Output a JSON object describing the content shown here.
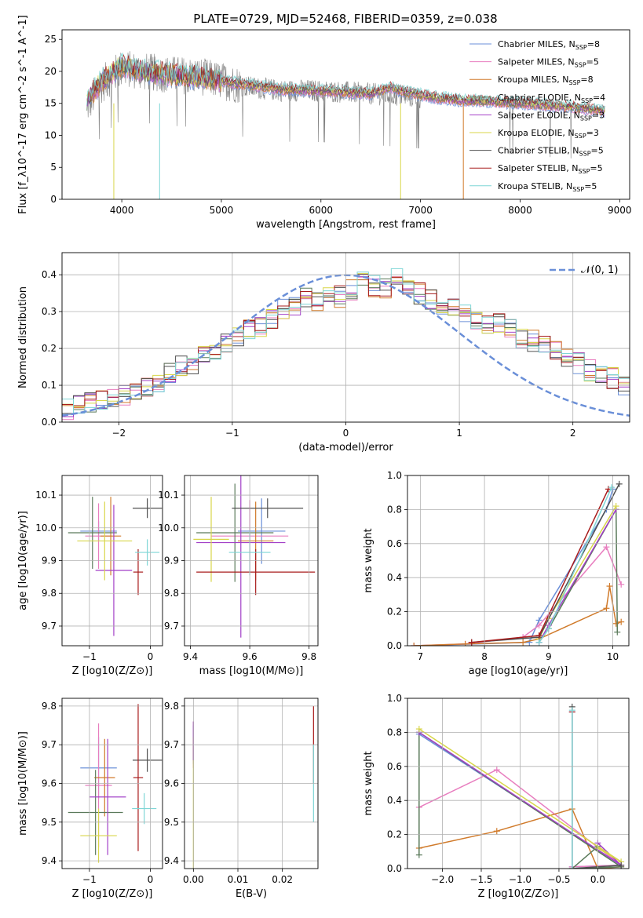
{
  "figure": {
    "title": "PLATE=0729, MJD=52468, FIBERID=0359, z=0.038"
  },
  "colors": {
    "Chabrier MILES": "#6a8fd8",
    "Salpeter MILES": "#e87ebf",
    "Kroupa MILES": "#d07a2a",
    "Chabrier ELODIE": "#5a7a5a",
    "Salpeter ELODIE": "#a23fc7",
    "Kroupa ELODIE": "#d8d64a",
    "Chabrier STELIB": "#505050",
    "Salpeter STELIB": "#a81c1c",
    "Kroupa STELIB": "#7fd6d6"
  },
  "chart_data": [
    {
      "id": "spectrum",
      "type": "line",
      "xlabel": "wavelength [Angstrom, rest frame]",
      "ylabel": "Flux [f_λ10^-17 erg cm^-2 s^-1 A^-1]",
      "xlim": [
        3400,
        9100
      ],
      "ylim": [
        0,
        26.5
      ],
      "xticks": [
        4000,
        5000,
        6000,
        7000,
        8000,
        9000
      ],
      "yticks": [
        0,
        5,
        10,
        15,
        20,
        25
      ],
      "legend": "top-right",
      "legend_entries": [
        {
          "imf": "Chabrier MILES",
          "nssp": "8"
        },
        {
          "imf": "Salpeter MILES",
          "nssp": "5"
        },
        {
          "imf": "Kroupa MILES",
          "nssp": "8"
        },
        {
          "imf": "Chabrier ELODIE",
          "nssp": "4"
        },
        {
          "imf": "Salpeter ELODIE",
          "nssp": "3"
        },
        {
          "imf": "Kroupa ELODIE",
          "nssp": "3"
        },
        {
          "imf": "Chabrier STELIB",
          "nssp": "5"
        },
        {
          "imf": "Salpeter STELIB",
          "nssp": "5"
        },
        {
          "imf": "Kroupa STELIB",
          "nssp": "5"
        }
      ],
      "observed_envelope": {
        "x": [
          3650,
          3800,
          4000,
          4200,
          4500,
          4800,
          5000,
          5300,
          5600,
          5900,
          6200,
          6500,
          6800,
          7100,
          7400,
          7700,
          8000,
          8300,
          8600,
          8850
        ],
        "y": [
          14.5,
          18.0,
          20.5,
          20.0,
          19.5,
          19.2,
          18.5,
          17.5,
          17.0,
          17.0,
          16.8,
          16.5,
          16.2,
          15.8,
          15.5,
          15.2,
          15.0,
          14.6,
          14.3,
          13.8
        ]
      },
      "model_envelope": {
        "x": [
          3650,
          3800,
          4000,
          4200,
          4500,
          4800,
          5000,
          5300,
          5600,
          5900,
          6200,
          6500,
          6700,
          6800,
          7100,
          7400,
          7700,
          8000,
          8300,
          8600,
          8850
        ],
        "y": [
          15.5,
          18.5,
          21.0,
          20.0,
          19.5,
          19.0,
          18.5,
          17.8,
          17.2,
          17.0,
          16.8,
          16.5,
          17.5,
          17.0,
          16.0,
          15.5,
          15.3,
          15.0,
          14.7,
          14.3,
          13.8
        ]
      }
    },
    {
      "id": "residuals",
      "type": "line",
      "xlabel": "(data-model)/error",
      "ylabel": "Normed distribution",
      "xlim": [
        -2.5,
        2.5
      ],
      "ylim": [
        0,
        0.46
      ],
      "xticks": [
        -2,
        -1,
        0,
        1,
        2
      ],
      "yticks": [
        0.0,
        0.1,
        0.2,
        0.3,
        0.4
      ],
      "legend": "top-right",
      "gaussian_label": "𝒩(0, 1)",
      "bin_width": 0.1,
      "histogram_base": [
        0.035,
        0.045,
        0.05,
        0.06,
        0.07,
        0.075,
        0.08,
        0.09,
        0.11,
        0.13,
        0.15,
        0.16,
        0.18,
        0.19,
        0.21,
        0.23,
        0.25,
        0.26,
        0.28,
        0.31,
        0.32,
        0.34,
        0.33,
        0.35,
        0.34,
        0.36,
        0.38,
        0.37,
        0.36,
        0.39,
        0.37,
        0.35,
        0.33,
        0.32,
        0.31,
        0.3,
        0.28,
        0.27,
        0.27,
        0.25,
        0.23,
        0.22,
        0.21,
        0.19,
        0.18,
        0.16,
        0.14,
        0.13,
        0.12,
        0.1
      ]
    },
    {
      "id": "age-vs-Z",
      "type": "scatter",
      "xlabel": "Z [log10(Z/Z⊙)]",
      "ylabel": "age [log10(age/yr)]",
      "xlim": [
        -1.45,
        0.2
      ],
      "ylim": [
        9.64,
        10.16
      ],
      "xticks": [
        -1,
        0
      ],
      "yticks": [
        9.7,
        9.8,
        9.9,
        10.0,
        10.1
      ],
      "errorbars": [
        {
          "model": "Chabrier MILES",
          "x": -0.85,
          "xerr": 0.3,
          "y": 9.99,
          "yerr": 0.03
        },
        {
          "model": "Salpeter MILES",
          "x": -0.85,
          "xerr": 0.22,
          "y": 9.975,
          "yerr": 0.1
        },
        {
          "model": "Kroupa MILES",
          "x": -0.65,
          "xerr": 0.17,
          "y": 9.975,
          "yerr": 0.12
        },
        {
          "model": "Chabrier ELODIE",
          "x": -0.95,
          "xerr": 0.4,
          "y": 9.985,
          "yerr": 0.11
        },
        {
          "model": "Salpeter ELODIE",
          "x": -0.6,
          "xerr": 0.3,
          "y": 9.87,
          "yerr": 0.2
        },
        {
          "model": "Kroupa ELODIE",
          "x": -0.75,
          "xerr": 0.45,
          "y": 9.96,
          "yerr": 0.12
        },
        {
          "model": "Chabrier STELIB",
          "x": -0.05,
          "xerr": 0.24,
          "y": 10.06,
          "yerr": 0.03
        },
        {
          "model": "Salpeter STELIB",
          "x": -0.2,
          "xerr": 0.08,
          "y": 9.865,
          "yerr": 0.07
        },
        {
          "model": "Kroupa STELIB",
          "x": -0.05,
          "xerr": 0.2,
          "y": 9.925,
          "yerr": 0.04
        }
      ]
    },
    {
      "id": "age-vs-mass",
      "type": "scatter",
      "xlabel": "mass [log10(M/M⊙)]",
      "ylabel": "",
      "xlim": [
        9.38,
        9.83
      ],
      "ylim": [
        9.64,
        10.16
      ],
      "xticks": [
        9.4,
        9.6,
        9.8
      ],
      "yticks": [
        9.7,
        9.8,
        9.9,
        10.0,
        10.1
      ],
      "errorbars": [
        {
          "model": "Chabrier MILES",
          "x": 9.64,
          "xerr": 0.08,
          "y": 9.99,
          "yerr": 0.1
        },
        {
          "model": "Salpeter MILES",
          "x": 9.6,
          "xerr": 0.13,
          "y": 9.975,
          "yerr": 0.11
        },
        {
          "model": "Kroupa MILES",
          "x": 9.62,
          "xerr": 0.06,
          "y": 9.96,
          "yerr": 0.12
        },
        {
          "model": "Chabrier ELODIE",
          "x": 9.55,
          "xerr": 0.13,
          "y": 9.985,
          "yerr": 0.15
        },
        {
          "model": "Salpeter ELODIE",
          "x": 9.57,
          "xerr": 0.15,
          "y": 9.955,
          "yerr": 0.29
        },
        {
          "model": "Kroupa ELODIE",
          "x": 9.47,
          "xerr": 0.06,
          "y": 9.965,
          "yerr": 0.13
        },
        {
          "model": "Chabrier STELIB",
          "x": 9.66,
          "xerr": 0.12,
          "y": 10.06,
          "yerr": 0.03
        },
        {
          "model": "Salpeter STELIB",
          "x": 9.62,
          "xerr": 0.2,
          "y": 9.865,
          "yerr": 0.07
        },
        {
          "model": "Kroupa STELIB",
          "x": 9.6,
          "xerr": 0.07,
          "y": 9.925,
          "yerr": 0.07
        }
      ]
    },
    {
      "id": "weight-vs-age",
      "type": "line",
      "xlabel": "age [log10(age/yr)]",
      "ylabel": "mass weight",
      "xlim": [
        6.8,
        10.25
      ],
      "ylim": [
        0,
        1.0
      ],
      "xticks": [
        7,
        8,
        9,
        10
      ],
      "yticks": [
        0.0,
        0.2,
        0.4,
        0.6,
        0.8,
        1.0
      ],
      "series": [
        {
          "model": "Chabrier MILES",
          "x": [
            6.9,
            8.7,
            8.85,
            9.9,
            10.0
          ],
          "y": [
            0,
            0.02,
            0.15,
            0.8,
            0.92
          ]
        },
        {
          "model": "Salpeter MILES",
          "x": [
            6.9,
            7.7,
            8.6,
            8.85,
            9.9,
            10.13
          ],
          "y": [
            0,
            0.01,
            0.05,
            0.12,
            0.58,
            0.36
          ]
        },
        {
          "model": "Kroupa MILES",
          "x": [
            6.9,
            7.7,
            8.6,
            8.85,
            9.9,
            9.95,
            10.05,
            10.13
          ],
          "y": [
            0,
            0.01,
            0.02,
            0.04,
            0.22,
            0.35,
            0.13,
            0.14
          ]
        },
        {
          "model": "Chabrier ELODIE",
          "x": [
            8.85,
            9.0,
            10.05,
            10.07
          ],
          "y": [
            0.02,
            0.1,
            0.8,
            0.08
          ]
        },
        {
          "model": "Salpeter ELODIE",
          "x": [
            8.85,
            9.0,
            10.05
          ],
          "y": [
            0.02,
            0.12,
            0.8
          ]
        },
        {
          "model": "Kroupa ELODIE",
          "x": [
            8.85,
            9.0,
            10.05
          ],
          "y": [
            0.04,
            0.16,
            0.82
          ]
        },
        {
          "model": "Chabrier STELIB",
          "x": [
            7.8,
            8.85,
            10.1
          ],
          "y": [
            0.02,
            0.05,
            0.95
          ]
        },
        {
          "model": "Salpeter STELIB",
          "x": [
            7.8,
            8.85,
            9.93
          ],
          "y": [
            0.02,
            0.06,
            0.92
          ]
        },
        {
          "model": "Kroupa STELIB",
          "x": [
            8.85,
            9.0,
            9.98
          ],
          "y": [
            0.02,
            0.1,
            0.93
          ]
        }
      ]
    },
    {
      "id": "mass-vs-Z",
      "type": "scatter",
      "xlabel": "Z [log10(Z/Z⊙)]",
      "ylabel": "mass [log10(M/M⊙)]",
      "xlim": [
        -1.45,
        0.2
      ],
      "ylim": [
        9.38,
        9.82
      ],
      "xticks": [
        -1,
        0
      ],
      "yticks": [
        9.4,
        9.5,
        9.6,
        9.7,
        9.8
      ],
      "errorbars": [
        {
          "model": "Chabrier MILES",
          "x": -0.85,
          "xerr": 0.3,
          "y": 9.64,
          "yerr": 0.08
        },
        {
          "model": "Salpeter MILES",
          "x": -0.85,
          "xerr": 0.22,
          "y": 9.595,
          "yerr": 0.16
        },
        {
          "model": "Kroupa MILES",
          "x": -0.75,
          "xerr": 0.17,
          "y": 9.615,
          "yerr": 0.1
        },
        {
          "model": "Chabrier ELODIE",
          "x": -0.9,
          "xerr": 0.45,
          "y": 9.525,
          "yerr": 0.11
        },
        {
          "model": "Salpeter ELODIE",
          "x": -0.7,
          "xerr": 0.3,
          "y": 9.565,
          "yerr": 0.15
        },
        {
          "model": "Kroupa ELODIE",
          "x": -0.85,
          "xerr": 0.3,
          "y": 9.465,
          "yerr": 0.07
        },
        {
          "model": "Chabrier STELIB",
          "x": -0.05,
          "xerr": 0.24,
          "y": 9.66,
          "yerr": 0.03
        },
        {
          "model": "Salpeter STELIB",
          "x": -0.2,
          "xerr": 0.08,
          "y": 9.615,
          "yerr": 0.19
        },
        {
          "model": "Kroupa STELIB",
          "x": -0.1,
          "xerr": 0.2,
          "y": 9.535,
          "yerr": 0.04
        }
      ]
    },
    {
      "id": "mass-vs-EBV",
      "type": "scatter",
      "xlabel": "E(B-V)",
      "ylabel": "",
      "xlim": [
        -0.002,
        0.028
      ],
      "ylim": [
        9.38,
        9.82
      ],
      "xticks": [
        0.0,
        0.01,
        0.02
      ],
      "yticks": [
        9.4,
        9.5,
        9.6,
        9.7,
        9.8
      ],
      "errorbars": [
        {
          "model": "Chabrier MILES",
          "x": 0.0,
          "xerr": 0,
          "y": 9.7,
          "yerr": 0.05
        },
        {
          "model": "Salpeter MILES",
          "x": 0.0,
          "xerr": 0,
          "y": 9.7,
          "yerr": 0.06
        },
        {
          "model": "Kroupa ELODIE",
          "x": 0.0,
          "xerr": 0,
          "y": 9.55,
          "yerr": 0.17
        },
        {
          "model": "Salpeter ELODIE",
          "x": 0.0,
          "xerr": 0,
          "y": 9.71,
          "yerr": 0.05
        },
        {
          "model": "Salpeter STELIB",
          "x": 0.027,
          "xerr": 0,
          "y": 9.7,
          "yerr": 0.1
        },
        {
          "model": "Kroupa STELIB",
          "x": 0.027,
          "xerr": 0,
          "y": 9.6,
          "yerr": 0.1
        }
      ]
    },
    {
      "id": "weight-vs-Z",
      "type": "line",
      "xlabel": "Z [log10(Z/Z⊙)]",
      "ylabel": "mass weight",
      "xlim": [
        -2.45,
        0.4
      ],
      "ylim": [
        0,
        1.0
      ],
      "xticks": [
        -2.0,
        -1.5,
        -1.0,
        -0.5,
        0.0
      ],
      "yticks": [
        0.0,
        0.2,
        0.4,
        0.6,
        0.8,
        1.0
      ],
      "series": [
        {
          "model": "Chabrier MILES",
          "x": [
            -2.3,
            0.3,
            -0.33,
            -0.33
          ],
          "y": [
            0.79,
            0.02,
            0.01,
            0.92
          ]
        },
        {
          "model": "Salpeter MILES",
          "x": [
            -2.3,
            -1.3,
            0.3,
            -0.33
          ],
          "y": [
            0.36,
            0.58,
            0.02,
            0.01
          ]
        },
        {
          "model": "Kroupa MILES",
          "x": [
            -2.3,
            -1.3,
            -0.33,
            0.0,
            0.3
          ],
          "y": [
            0.12,
            0.22,
            0.35,
            0.0,
            0.01
          ]
        },
        {
          "model": "Chabrier ELODIE",
          "x": [
            -2.3,
            -2.3,
            0.3,
            -0.33,
            0.0
          ],
          "y": [
            0.08,
            0.8,
            0.01,
            0.0,
            0.13
          ]
        },
        {
          "model": "Salpeter ELODIE",
          "x": [
            -2.3,
            0.3,
            0.0
          ],
          "y": [
            0.8,
            0.02,
            0.15
          ]
        },
        {
          "model": "Kroupa ELODIE",
          "x": [
            -2.3,
            0.3,
            0.0
          ],
          "y": [
            0.82,
            0.04,
            0.12
          ]
        },
        {
          "model": "Chabrier STELIB",
          "x": [
            -0.33,
            -0.33,
            0.3
          ],
          "y": [
            0.95,
            0.0,
            0.02
          ]
        },
        {
          "model": "Salpeter STELIB",
          "x": [
            -0.33,
            -0.33
          ],
          "y": [
            0.92,
            0.0
          ]
        },
        {
          "model": "Kroupa STELIB",
          "x": [
            -0.33,
            -0.33
          ],
          "y": [
            0.93,
            0.0
          ]
        }
      ]
    }
  ]
}
